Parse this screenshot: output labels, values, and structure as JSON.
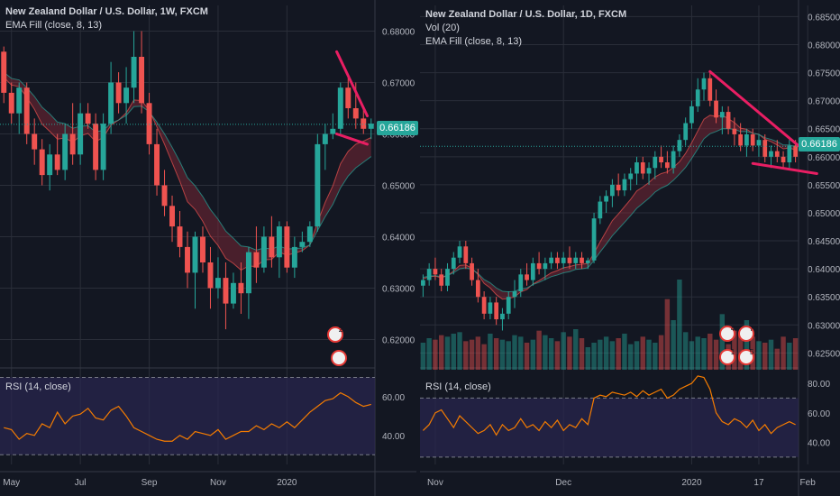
{
  "colors": {
    "bg": "#131722",
    "grid": "#2a2e39",
    "up": "#26a69a",
    "down": "#ef5350",
    "ema_fast": "#ef5350",
    "ema_slow": "#26a69a",
    "rsi": "#f57c00",
    "rsi_bg": "#2a2750",
    "pattern": "#e91e63",
    "last_line": "#26a69a",
    "axis_text": "#b2b5be"
  },
  "left": {
    "legend": {
      "title": "New Zealand Dollar / U.S. Dollar, 1W, FXCM",
      "ema": "EMA Fill (close, 8, 13)"
    },
    "rsi_label": "RSI (14, close)",
    "last_price": "0.66186",
    "price_axis": [
      "0.68000",
      "0.67000",
      "0.66000",
      "0.65000",
      "0.64000",
      "0.63000",
      "0.62000"
    ],
    "rsi_axis": [
      "60.00",
      "40.00"
    ],
    "time_axis": [
      "May",
      "Jul",
      "Sep",
      "Nov",
      "2020"
    ],
    "flags": [
      "2"
    ]
  },
  "right": {
    "legend": {
      "title": "New Zealand Dollar / U.S. Dollar, 1D, FXCM",
      "vol": "Vol (20)",
      "ema": "EMA Fill (close, 8, 13)"
    },
    "rsi_label": "RSI (14, close)",
    "last_price": "0.66186",
    "price_axis": [
      "0.68500",
      "0.68000",
      "0.67500",
      "0.67000",
      "0.66500",
      "0.66000",
      "0.65500",
      "0.65000",
      "0.64500",
      "0.64000",
      "0.63500",
      "0.63000",
      "0.62500"
    ],
    "rsi_axis": [
      "80.00",
      "60.00",
      "40.00"
    ],
    "time_axis": [
      "Nov",
      "Dec",
      "2020",
      "17",
      "Feb"
    ],
    "flags": [
      "4",
      "7",
      "1",
      "5",
      "1",
      "3"
    ]
  },
  "chart_data": [
    {
      "type": "candlestick",
      "title": "New Zealand Dollar / U.S. Dollar, 1W, FXCM",
      "ylim": [
        0.615,
        0.685
      ],
      "x_ticks": [
        "May",
        "Jul",
        "Sep",
        "Nov",
        "2020"
      ],
      "candles": [
        [
          0.676,
          0.677,
          0.666,
          0.668
        ],
        [
          0.668,
          0.67,
          0.662,
          0.664
        ],
        [
          0.664,
          0.67,
          0.66,
          0.669
        ],
        [
          0.669,
          0.67,
          0.658,
          0.66
        ],
        [
          0.66,
          0.663,
          0.654,
          0.657
        ],
        [
          0.657,
          0.659,
          0.65,
          0.652
        ],
        [
          0.652,
          0.658,
          0.649,
          0.656
        ],
        [
          0.656,
          0.66,
          0.652,
          0.653
        ],
        [
          0.653,
          0.662,
          0.651,
          0.66
        ],
        [
          0.66,
          0.666,
          0.654,
          0.656
        ],
        [
          0.656,
          0.666,
          0.654,
          0.664
        ],
        [
          0.664,
          0.666,
          0.661,
          0.662
        ],
        [
          0.662,
          0.664,
          0.651,
          0.653
        ],
        [
          0.653,
          0.664,
          0.651,
          0.662
        ],
        [
          0.662,
          0.674,
          0.66,
          0.67
        ],
        [
          0.67,
          0.672,
          0.664,
          0.666
        ],
        [
          0.666,
          0.673,
          0.662,
          0.669
        ],
        [
          0.669,
          0.68,
          0.666,
          0.675
        ],
        [
          0.675,
          0.68,
          0.664,
          0.666
        ],
        [
          0.666,
          0.668,
          0.656,
          0.658
        ],
        [
          0.658,
          0.661,
          0.648,
          0.65
        ],
        [
          0.65,
          0.653,
          0.644,
          0.646
        ],
        [
          0.646,
          0.648,
          0.639,
          0.642
        ],
        [
          0.642,
          0.645,
          0.636,
          0.638
        ],
        [
          0.638,
          0.641,
          0.63,
          0.633
        ],
        [
          0.633,
          0.641,
          0.626,
          0.64
        ],
        [
          0.64,
          0.642,
          0.633,
          0.635
        ],
        [
          0.635,
          0.638,
          0.626,
          0.63
        ],
        [
          0.63,
          0.636,
          0.628,
          0.632
        ],
        [
          0.632,
          0.635,
          0.622,
          0.627
        ],
        [
          0.627,
          0.633,
          0.626,
          0.631
        ],
        [
          0.631,
          0.635,
          0.625,
          0.629
        ],
        [
          0.629,
          0.638,
          0.624,
          0.637
        ],
        [
          0.637,
          0.642,
          0.631,
          0.634
        ],
        [
          0.634,
          0.642,
          0.633,
          0.64
        ],
        [
          0.64,
          0.644,
          0.634,
          0.636
        ],
        [
          0.636,
          0.643,
          0.632,
          0.642
        ],
        [
          0.642,
          0.643,
          0.633,
          0.634
        ],
        [
          0.634,
          0.64,
          0.632,
          0.638
        ],
        [
          0.638,
          0.641,
          0.637,
          0.639
        ],
        [
          0.639,
          0.643,
          0.638,
          0.642
        ],
        [
          0.642,
          0.66,
          0.641,
          0.658
        ],
        [
          0.658,
          0.662,
          0.653,
          0.66
        ],
        [
          0.66,
          0.664,
          0.659,
          0.661
        ],
        [
          0.661,
          0.67,
          0.66,
          0.669
        ],
        [
          0.669,
          0.671,
          0.663,
          0.665
        ],
        [
          0.665,
          0.67,
          0.661,
          0.663
        ],
        [
          0.663,
          0.665,
          0.66,
          0.661
        ],
        [
          0.661,
          0.663,
          0.659,
          0.662
        ]
      ],
      "ema_fast": [
        0.671,
        0.6695,
        0.6692,
        0.6671,
        0.6648,
        0.6619,
        0.6605,
        0.659,
        0.6592,
        0.6584,
        0.6596,
        0.6601,
        0.6585,
        0.6593,
        0.6617,
        0.6627,
        0.6641,
        0.6666,
        0.6665,
        0.6646,
        0.6614,
        0.658,
        0.6544,
        0.6508,
        0.6468,
        0.6453,
        0.643,
        0.6401,
        0.6383,
        0.6358,
        0.6348,
        0.6335,
        0.6343,
        0.6342,
        0.6355,
        0.6356,
        0.637,
        0.6364,
        0.6368,
        0.6373,
        0.6384,
        0.6428,
        0.6467,
        0.6499,
        0.6542,
        0.6566,
        0.658,
        0.6586,
        0.6593
      ],
      "ema_slow": [
        0.672,
        0.6708,
        0.6705,
        0.669,
        0.6673,
        0.6652,
        0.6639,
        0.6623,
        0.662,
        0.6611,
        0.6615,
        0.6616,
        0.6604,
        0.6607,
        0.6621,
        0.6627,
        0.6636,
        0.6653,
        0.6654,
        0.6643,
        0.6623,
        0.66,
        0.6574,
        0.6546,
        0.6515,
        0.6499,
        0.6478,
        0.6453,
        0.6434,
        0.6411,
        0.6397,
        0.6382,
        0.638,
        0.6374,
        0.6378,
        0.6376,
        0.6382,
        0.6376,
        0.6377,
        0.6378,
        0.6384,
        0.6412,
        0.6439,
        0.6463,
        0.6495,
        0.6518,
        0.6534,
        0.6545,
        0.6556
      ],
      "pattern_lines": [
        [
          [
            43.5,
            0.676
          ],
          [
            47.5,
            0.6635
          ]
        ],
        [
          [
            43.5,
            0.66
          ],
          [
            47.5,
            0.658
          ]
        ]
      ],
      "last_price": 0.66186,
      "rsi": {
        "label": "RSI (14, close)",
        "ylim": [
          25,
          73
        ],
        "bands": [
          30,
          70
        ],
        "values": [
          44,
          43,
          38,
          41,
          40,
          46,
          44,
          52,
          46,
          50,
          51,
          54,
          49,
          48,
          53,
          55,
          50,
          44,
          42,
          40,
          38,
          37,
          37,
          40,
          38,
          42,
          41,
          40,
          43,
          38,
          40,
          42,
          42,
          45,
          43,
          46,
          44,
          47,
          44,
          48,
          52,
          55,
          58,
          59,
          62,
          60,
          57,
          55,
          56
        ]
      }
    },
    {
      "type": "candlestick",
      "title": "New Zealand Dollar / U.S. Dollar, 1D, FXCM",
      "ylim": [
        0.622,
        0.687
      ],
      "x_ticks": [
        "Nov",
        "Dec",
        "2020",
        "17",
        "Feb"
      ],
      "candles": [
        [
          0.637,
          0.639,
          0.635,
          0.638
        ],
        [
          0.638,
          0.641,
          0.637,
          0.64
        ],
        [
          0.64,
          0.642,
          0.638,
          0.639
        ],
        [
          0.639,
          0.64,
          0.636,
          0.637
        ],
        [
          0.637,
          0.641,
          0.636,
          0.64
        ],
        [
          0.64,
          0.643,
          0.639,
          0.642
        ],
        [
          0.642,
          0.645,
          0.641,
          0.644
        ],
        [
          0.644,
          0.645,
          0.64,
          0.641
        ],
        [
          0.641,
          0.642,
          0.637,
          0.638
        ],
        [
          0.638,
          0.64,
          0.634,
          0.635
        ],
        [
          0.635,
          0.636,
          0.631,
          0.632
        ],
        [
          0.632,
          0.635,
          0.631,
          0.634
        ],
        [
          0.634,
          0.635,
          0.63,
          0.631
        ],
        [
          0.631,
          0.633,
          0.629,
          0.632
        ],
        [
          0.632,
          0.636,
          0.631,
          0.635
        ],
        [
          0.635,
          0.638,
          0.633,
          0.636
        ],
        [
          0.636,
          0.64,
          0.635,
          0.639
        ],
        [
          0.639,
          0.641,
          0.637,
          0.638
        ],
        [
          0.638,
          0.642,
          0.637,
          0.641
        ],
        [
          0.641,
          0.643,
          0.639,
          0.64
        ],
        [
          0.64,
          0.642,
          0.638,
          0.641
        ],
        [
          0.641,
          0.643,
          0.64,
          0.642
        ],
        [
          0.642,
          0.643,
          0.64,
          0.641
        ],
        [
          0.641,
          0.643,
          0.64,
          0.642
        ],
        [
          0.642,
          0.644,
          0.64,
          0.641
        ],
        [
          0.641,
          0.643,
          0.64,
          0.642
        ],
        [
          0.642,
          0.643,
          0.64,
          0.641
        ],
        [
          0.641,
          0.642,
          0.64,
          0.6415
        ],
        [
          0.6415,
          0.65,
          0.641,
          0.649
        ],
        [
          0.649,
          0.653,
          0.648,
          0.652
        ],
        [
          0.652,
          0.654,
          0.65,
          0.653
        ],
        [
          0.653,
          0.656,
          0.651,
          0.655
        ],
        [
          0.655,
          0.657,
          0.653,
          0.654
        ],
        [
          0.654,
          0.657,
          0.653,
          0.656
        ],
        [
          0.656,
          0.658,
          0.654,
          0.657
        ],
        [
          0.657,
          0.66,
          0.655,
          0.659
        ],
        [
          0.659,
          0.66,
          0.656,
          0.657
        ],
        [
          0.657,
          0.659,
          0.655,
          0.658
        ],
        [
          0.658,
          0.661,
          0.656,
          0.66
        ],
        [
          0.66,
          0.662,
          0.658,
          0.659
        ],
        [
          0.659,
          0.661,
          0.657,
          0.658
        ],
        [
          0.658,
          0.662,
          0.657,
          0.661
        ],
        [
          0.661,
          0.664,
          0.66,
          0.663
        ],
        [
          0.663,
          0.667,
          0.662,
          0.666
        ],
        [
          0.666,
          0.67,
          0.665,
          0.669
        ],
        [
          0.669,
          0.674,
          0.668,
          0.672
        ],
        [
          0.672,
          0.675,
          0.67,
          0.674
        ],
        [
          0.674,
          0.675,
          0.669,
          0.67
        ],
        [
          0.67,
          0.672,
          0.666,
          0.667
        ],
        [
          0.667,
          0.669,
          0.664,
          0.668
        ],
        [
          0.668,
          0.669,
          0.664,
          0.665
        ],
        [
          0.665,
          0.667,
          0.662,
          0.664
        ],
        [
          0.664,
          0.666,
          0.661,
          0.662
        ],
        [
          0.662,
          0.665,
          0.66,
          0.664
        ],
        [
          0.664,
          0.665,
          0.661,
          0.662
        ],
        [
          0.662,
          0.664,
          0.66,
          0.663
        ],
        [
          0.663,
          0.664,
          0.659,
          0.66
        ],
        [
          0.66,
          0.662,
          0.658,
          0.661
        ],
        [
          0.661,
          0.663,
          0.659,
          0.66
        ],
        [
          0.66,
          0.661,
          0.658,
          0.659
        ],
        [
          0.659,
          0.663,
          0.658,
          0.662
        ],
        [
          0.662,
          0.663,
          0.659,
          0.66
        ]
      ],
      "ema_fast": [
        0.6382,
        0.6386,
        0.6387,
        0.6384,
        0.6388,
        0.6396,
        0.6406,
        0.6407,
        0.6401,
        0.639,
        0.6374,
        0.6366,
        0.6354,
        0.6346,
        0.6347,
        0.635,
        0.6359,
        0.6363,
        0.6373,
        0.6379,
        0.6386,
        0.6393,
        0.6397,
        0.6402,
        0.6404,
        0.6407,
        0.6408,
        0.641,
        0.6428,
        0.6448,
        0.6467,
        0.6486,
        0.6498,
        0.6511,
        0.6524,
        0.6539,
        0.6546,
        0.6554,
        0.6564,
        0.657,
        0.6573,
        0.6581,
        0.6591,
        0.6606,
        0.6625,
        0.6646,
        0.6667,
        0.6674,
        0.6672,
        0.6674,
        0.6668,
        0.6661,
        0.6651,
        0.6649,
        0.6642,
        0.664,
        0.6631,
        0.6627,
        0.6621,
        0.6614,
        0.6616,
        0.6612
      ],
      "ema_slow": [
        0.6385,
        0.6387,
        0.6388,
        0.6386,
        0.6388,
        0.6393,
        0.64,
        0.6402,
        0.6399,
        0.6392,
        0.6381,
        0.6375,
        0.6366,
        0.636,
        0.6359,
        0.636,
        0.6364,
        0.6366,
        0.6372,
        0.6376,
        0.6381,
        0.6386,
        0.6389,
        0.6393,
        0.6395,
        0.6399,
        0.64,
        0.6402,
        0.6415,
        0.643,
        0.6444,
        0.6459,
        0.6471,
        0.6483,
        0.6495,
        0.6508,
        0.6517,
        0.6526,
        0.6537,
        0.6544,
        0.6549,
        0.6558,
        0.6569,
        0.6581,
        0.6597,
        0.6614,
        0.6632,
        0.6641,
        0.6645,
        0.665,
        0.665,
        0.6649,
        0.6645,
        0.6645,
        0.6642,
        0.664,
        0.6634,
        0.6631,
        0.6627,
        0.6621,
        0.6621,
        0.6618
      ],
      "pattern_lines": [
        [
          [
            47,
            0.6752
          ],
          [
            62,
            0.6615
          ]
        ],
        [
          [
            54,
            0.6588
          ],
          [
            64.5,
            0.657
          ]
        ]
      ],
      "last_price": 0.66186,
      "volume": [
        18,
        21,
        20,
        23,
        22,
        24,
        25,
        19,
        20,
        22,
        17,
        24,
        21,
        20,
        19,
        23,
        22,
        18,
        20,
        26,
        23,
        21,
        19,
        25,
        22,
        27,
        21,
        15,
        18,
        20,
        22,
        19,
        21,
        24,
        17,
        19,
        22,
        20,
        18,
        23,
        47,
        33,
        60,
        25,
        19,
        22,
        21,
        24,
        20,
        37,
        17,
        26,
        25,
        33,
        22,
        19,
        18,
        20,
        14,
        22,
        18,
        21
      ],
      "rsi": {
        "label": "RSI (14, close)",
        "ylim": [
          25,
          88
        ],
        "bands": [
          30,
          70
        ],
        "values": [
          48,
          52,
          60,
          62,
          56,
          50,
          58,
          54,
          50,
          46,
          48,
          52,
          45,
          52,
          48,
          50,
          56,
          50,
          52,
          48,
          54,
          50,
          55,
          48,
          52,
          50,
          56,
          52,
          70,
          72,
          71,
          74,
          73,
          72,
          74,
          71,
          75,
          72,
          74,
          76,
          70,
          72,
          76,
          78,
          80,
          85,
          84,
          76,
          60,
          54,
          52,
          56,
          54,
          50,
          55,
          48,
          52,
          46,
          50,
          52,
          54,
          52
        ]
      }
    }
  ]
}
